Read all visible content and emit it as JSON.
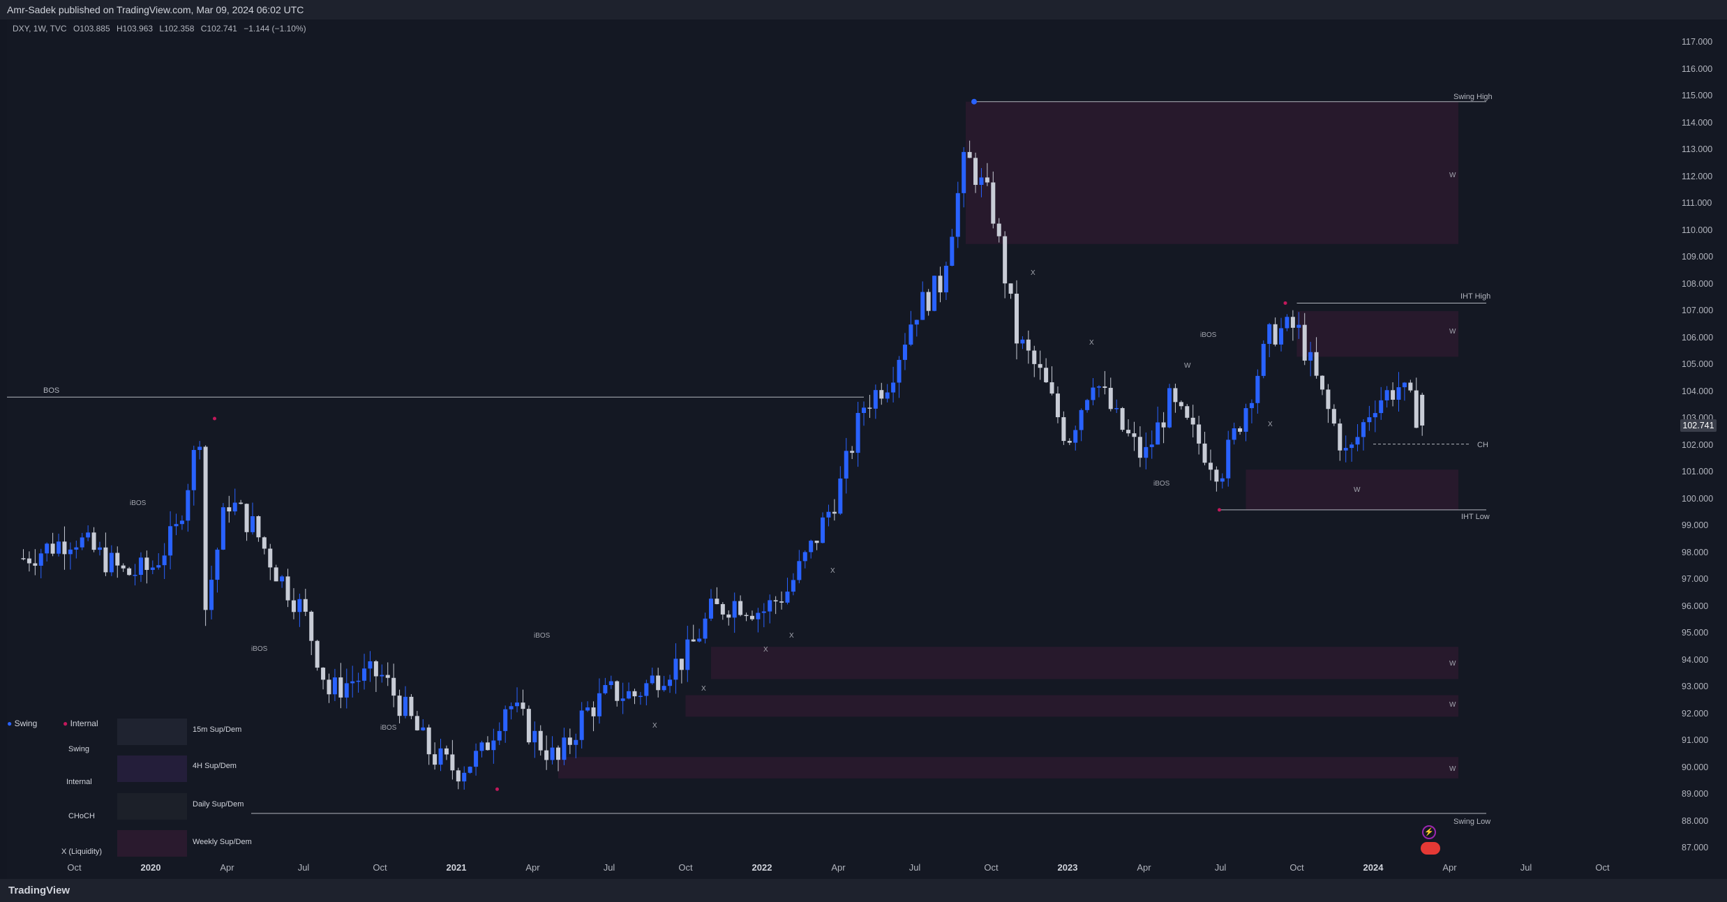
{
  "publish_bar": "Amr-Sadek published on TradingView.com, Mar 09, 2024 06:02 UTC",
  "legend": {
    "symbol": "DXY, 1W, TVC",
    "open": "O103.885",
    "high": "H103.963",
    "low": "L102.358",
    "close": "C102.741",
    "change": "−1.144 (−1.10%)"
  },
  "price_ticks": [
    "117.000",
    "116.000",
    "115.000",
    "114.000",
    "113.000",
    "112.000",
    "111.000",
    "110.000",
    "109.000",
    "108.000",
    "107.000",
    "106.000",
    "105.000",
    "104.000",
    "103.000",
    "102.000",
    "101.000",
    "100.000",
    "99.000",
    "98.000",
    "97.000",
    "96.000",
    "95.000",
    "94.000",
    "93.000",
    "92.000",
    "91.000",
    "90.000",
    "89.000",
    "88.000",
    "87.000"
  ],
  "last_price": "102.741",
  "time_ticks": [
    {
      "label": "Oct",
      "bold": false
    },
    {
      "label": "2020",
      "bold": true
    },
    {
      "label": "Apr",
      "bold": false
    },
    {
      "label": "Jul",
      "bold": false
    },
    {
      "label": "Oct",
      "bold": false
    },
    {
      "label": "2021",
      "bold": true
    },
    {
      "label": "Apr",
      "bold": false
    },
    {
      "label": "Jul",
      "bold": false
    },
    {
      "label": "Oct",
      "bold": false
    },
    {
      "label": "2022",
      "bold": true
    },
    {
      "label": "Apr",
      "bold": false
    },
    {
      "label": "Jul",
      "bold": false
    },
    {
      "label": "Oct",
      "bold": false
    },
    {
      "label": "2023",
      "bold": true
    },
    {
      "label": "Apr",
      "bold": false
    },
    {
      "label": "Jul",
      "bold": false
    },
    {
      "label": "Oct",
      "bold": false
    },
    {
      "label": "2024",
      "bold": true
    },
    {
      "label": "Apr",
      "bold": false
    },
    {
      "label": "Jul",
      "bold": false
    },
    {
      "label": "Oct",
      "bold": false
    }
  ],
  "annotations": {
    "swing_high": "Swing High",
    "swing_low": "Swing Low",
    "iht_high": "IHT High",
    "iht_low": "IHT Low",
    "bos": "BOS",
    "ibos": "iBOS",
    "choch": "CH",
    "zone": "W",
    "liquidity": "X"
  },
  "key_legend": {
    "swing": "Swing",
    "internal": "Internal",
    "line_swing": "Swing",
    "line_internal": "Internal",
    "line_choch": "CHoCH",
    "line_liquidity": "X (Liquidity)",
    "zone_15m": "15m Sup/Dem",
    "zone_4h": "4H Sup/Dem",
    "zone_daily": "Daily Sup/Dem",
    "zone_weekly": "Weekly Sup/Dem"
  },
  "colors": {
    "background": "#131722",
    "bull_candle": "#2962ff",
    "bear_candle": "#c8ccd6",
    "zone": "#2a1a2e",
    "swing_dot": "#2962ff",
    "internal_dot": "#c2185b"
  },
  "chart_data": {
    "type": "candlestick",
    "symbol": "DXY",
    "timeframe": "1W",
    "ylim": [
      86.5,
      117.5
    ],
    "x_range": [
      "2019-08",
      "2024-11"
    ],
    "close_path": [
      [
        "2019-08",
        97.8
      ],
      [
        "2019-10",
        98.6
      ],
      [
        "2019-12",
        97.2
      ],
      [
        "2020-01",
        97.4
      ],
      [
        "2020-02",
        98.8
      ],
      [
        "2020-03",
        102.8
      ],
      [
        "2020-03",
        95.2
      ],
      [
        "2020-04",
        100.0
      ],
      [
        "2020-05",
        99.0
      ],
      [
        "2020-06",
        97.2
      ],
      [
        "2020-07",
        95.8
      ],
      [
        "2020-08",
        92.8
      ],
      [
        "2020-09",
        93.3
      ],
      [
        "2020-10",
        93.5
      ],
      [
        "2020-11",
        92.1
      ],
      [
        "2020-12",
        90.5
      ],
      [
        "2021-01",
        89.9
      ],
      [
        "2021-02",
        90.5
      ],
      [
        "2021-03",
        92.5
      ],
      [
        "2021-04",
        91.2
      ],
      [
        "2021-05",
        90.2
      ],
      [
        "2021-06",
        92.0
      ],
      [
        "2021-07",
        92.8
      ],
      [
        "2021-08",
        92.7
      ],
      [
        "2021-09",
        93.5
      ],
      [
        "2021-10",
        94.1
      ],
      [
        "2021-11",
        95.8
      ],
      [
        "2021-12",
        96.2
      ],
      [
        "2022-01",
        95.8
      ],
      [
        "2022-02",
        96.6
      ],
      [
        "2022-03",
        98.3
      ],
      [
        "2022-04",
        100.3
      ],
      [
        "2022-05",
        103.5
      ],
      [
        "2022-06",
        104.5
      ],
      [
        "2022-07",
        107.0
      ],
      [
        "2022-08",
        108.0
      ],
      [
        "2022-09",
        112.8
      ],
      [
        "2022-10",
        111.0
      ],
      [
        "2022-11",
        106.0
      ],
      [
        "2022-12",
        104.5
      ],
      [
        "2023-01",
        102.2
      ],
      [
        "2023-02",
        104.6
      ],
      [
        "2023-03",
        102.8
      ],
      [
        "2023-04",
        101.5
      ],
      [
        "2023-05",
        103.6
      ],
      [
        "2023-06",
        102.3
      ],
      [
        "2023-07",
        101.0
      ],
      [
        "2023-08",
        103.5
      ],
      [
        "2023-09",
        106.2
      ],
      [
        "2023-10",
        106.4
      ],
      [
        "2023-11",
        103.8
      ],
      [
        "2023-12",
        101.5
      ],
      [
        "2024-01",
        103.6
      ],
      [
        "2024-02",
        104.2
      ],
      [
        "2024-03",
        102.74
      ]
    ],
    "last_candle": {
      "open": 103.885,
      "high": 103.963,
      "low": 102.358,
      "close": 102.741
    },
    "levels": [
      {
        "name": "Swing High",
        "price": 114.8
      },
      {
        "name": "IHT High",
        "price": 107.3
      },
      {
        "name": "IHT Low",
        "price": 99.6
      },
      {
        "name": "Swing Low",
        "price": 88.3
      },
      {
        "name": "BOS",
        "price": 103.8
      },
      {
        "name": "CH",
        "price": 102.05
      }
    ],
    "zones": [
      {
        "type": "W",
        "from": "2022-09",
        "low": 109.5,
        "high": 114.8
      },
      {
        "type": "W",
        "from": "2023-10",
        "low": 105.3,
        "high": 107.0
      },
      {
        "type": "W",
        "from": "2023-08",
        "low": 99.6,
        "high": 101.1
      },
      {
        "type": "W",
        "from": "2021-11",
        "low": 93.3,
        "high": 94.5
      },
      {
        "type": "W",
        "from": "2021-10",
        "low": 91.9,
        "high": 92.7
      },
      {
        "type": "W",
        "from": "2021-05",
        "low": 89.6,
        "high": 90.4
      }
    ]
  }
}
